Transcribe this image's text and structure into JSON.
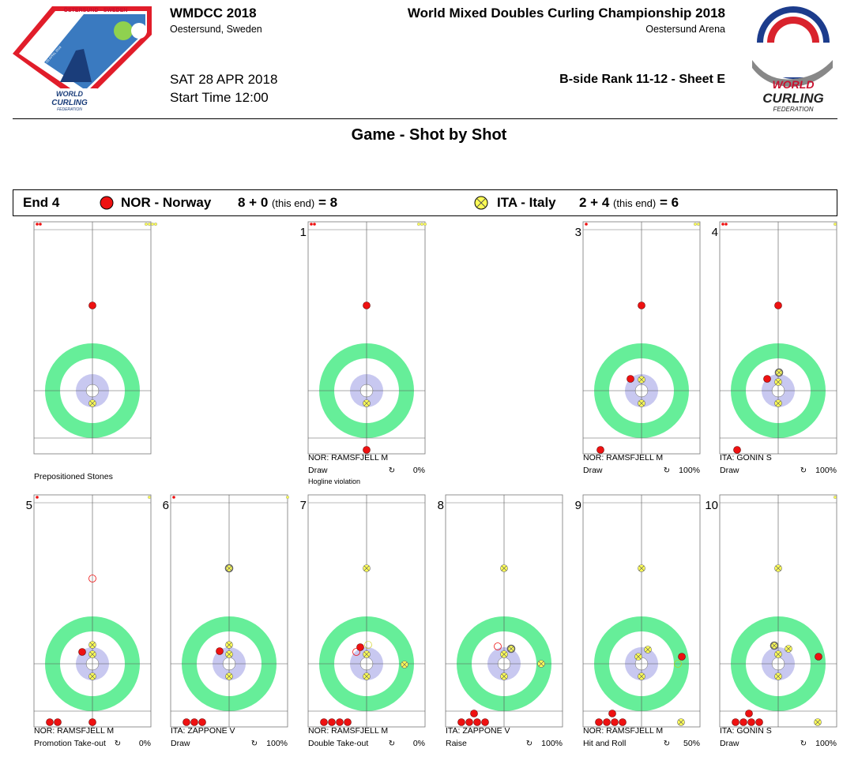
{
  "header": {
    "event_title": "WMDCC 2018",
    "event_location": "Oestersund, Sweden",
    "championship_title": "World Mixed Doubles Curling Championship 2018",
    "arena": "Oestersund Arena",
    "date": "SAT 28 APR 2018",
    "start_time": "Start Time 12:00",
    "game_info": "B-side Rank 11-12 - Sheet E",
    "page_title": "Game - Shot by Shot",
    "logo_left_text": [
      "ÖSTERSUND - SWEDEN",
      "WORLD MIXED DOUBLES CURLING CHAMPIONSHIP",
      "21-28 APRIL 2018",
      "WORLD",
      "CURLING",
      "FEDERATION"
    ],
    "logo_right_text": [
      "WORLD",
      "CURLING",
      "FEDERATION"
    ]
  },
  "end_bar": {
    "end_label": "End 4",
    "team1": {
      "name": "NOR - Norway",
      "score": "8 + 0",
      "this_end": "(this end)",
      "total": "= 8",
      "color": "#ff0000"
    },
    "team2": {
      "name": "ITA - Italy",
      "score": "2 + 4",
      "this_end": "(this end)",
      "total": "= 6",
      "color": "#ffff44"
    }
  },
  "colors": {
    "ring_outer": "#66ee99",
    "ring_blue": "#c8c8f0",
    "red_stone": "#ee1111",
    "yellow_stone": "#ffff55"
  },
  "panels": [
    {
      "num": "",
      "player": "",
      "shot": "",
      "pct": "",
      "note": "Prepositioned Stones",
      "extra": ""
    },
    {
      "num": "1",
      "player": "NOR: RAMSFJELL M",
      "shot": "Draw",
      "pct": "0%",
      "note": "",
      "extra": "Hogline violation"
    },
    {
      "num": "3",
      "player": "NOR: RAMSFJELL M",
      "shot": "Draw",
      "pct": "100%",
      "note": "",
      "extra": ""
    },
    {
      "num": "4",
      "player": "ITA: GONIN S",
      "shot": "Draw",
      "pct": "100%",
      "note": "",
      "extra": ""
    },
    {
      "num": "5",
      "player": "NOR: RAMSFJELL M",
      "shot": "Promotion Take-out",
      "pct": "0%",
      "note": "",
      "extra": ""
    },
    {
      "num": "6",
      "player": "ITA: ZAPPONE V",
      "shot": "Draw",
      "pct": "100%",
      "note": "",
      "extra": ""
    },
    {
      "num": "7",
      "player": "NOR: RAMSFJELL M",
      "shot": "Double Take-out",
      "pct": "0%",
      "note": "",
      "extra": ""
    },
    {
      "num": "8",
      "player": "ITA: ZAPPONE V",
      "shot": "Raise",
      "pct": "100%",
      "note": "",
      "extra": ""
    },
    {
      "num": "9",
      "player": "NOR: RAMSFJELL M",
      "shot": "Hit and Roll",
      "pct": "50%",
      "note": "",
      "extra": ""
    },
    {
      "num": "10",
      "player": "ITA: GONIN S",
      "shot": "Draw",
      "pct": "100%",
      "note": "",
      "extra": ""
    }
  ]
}
